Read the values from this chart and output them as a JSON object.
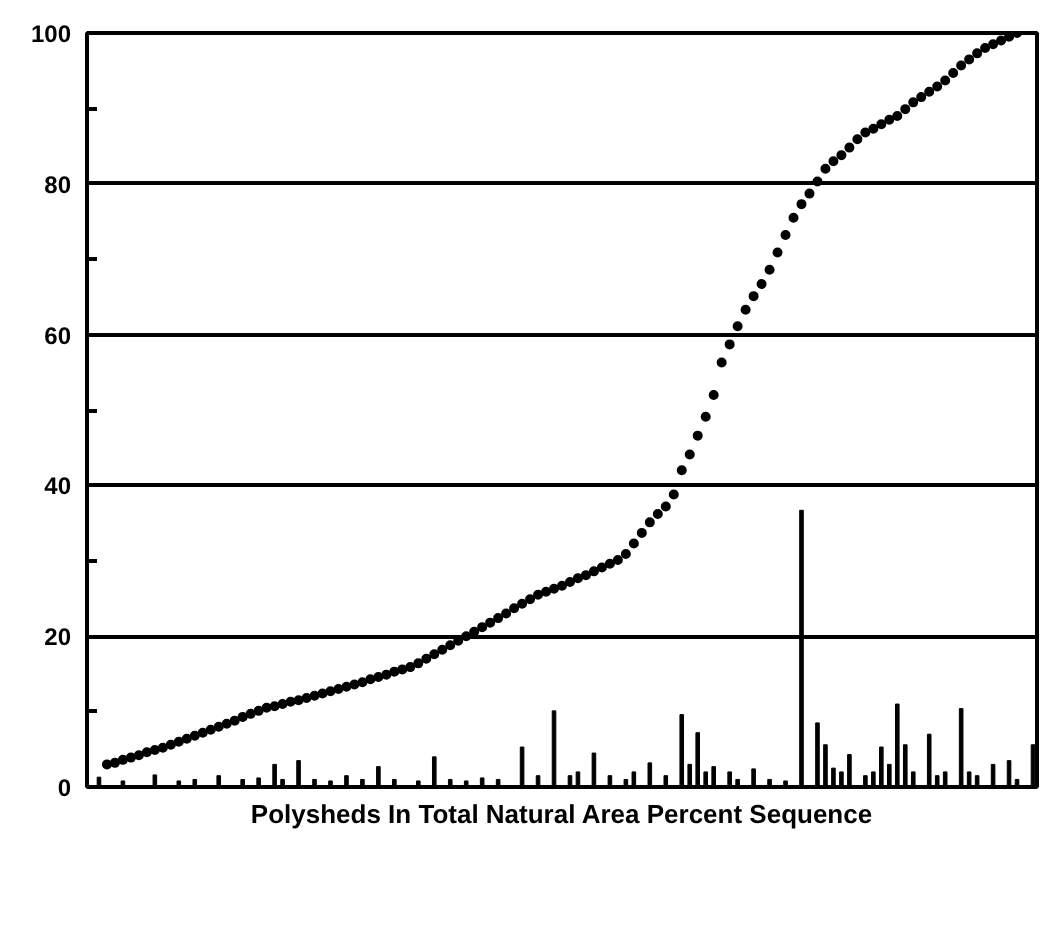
{
  "chart_data": {
    "type": "bar",
    "xlabel": "Polysheds In Total Natural Area Percent Sequence",
    "categories": [
      null,
      null,
      null,
      null,
      null,
      null,
      null,
      null,
      null,
      null,
      null,
      null,
      null,
      null,
      null,
      null,
      null,
      null,
      null,
      null,
      null,
      null,
      null,
      null,
      null,
      null,
      null,
      null,
      null,
      null,
      null,
      null,
      null,
      null,
      null,
      null,
      null,
      null,
      null,
      null,
      null,
      null,
      null,
      null,
      null,
      null,
      null,
      null,
      null,
      null,
      null,
      null,
      null,
      null,
      null,
      null,
      null,
      null,
      null,
      null,
      null,
      null,
      null,
      null,
      null,
      null,
      null,
      null,
      null,
      null,
      null,
      null,
      null,
      null,
      null,
      null,
      null,
      null,
      null,
      null,
      null,
      null,
      null,
      null,
      null,
      null,
      null,
      null,
      null,
      null,
      null,
      null,
      null,
      null,
      null,
      null,
      null,
      null,
      null,
      null,
      null,
      null,
      null,
      null,
      null,
      null,
      null,
      null,
      null,
      null,
      null,
      null,
      null,
      null,
      null,
      null,
      null,
      null,
      null
    ],
    "series": [
      {
        "color": "#000000",
        "values": [
          null,
          1.3,
          null,
          null,
          0.8,
          null,
          null,
          null,
          1.6,
          null,
          null,
          0.8,
          null,
          1.0,
          null,
          null,
          1.5,
          null,
          null,
          1.0,
          null,
          1.2,
          null,
          3.0,
          1.0,
          null,
          3.5,
          null,
          1.0,
          null,
          0.8,
          null,
          1.5,
          null,
          1.0,
          null,
          2.7,
          null,
          1.0,
          null,
          null,
          0.8,
          null,
          4.0,
          null,
          1.0,
          null,
          0.8,
          null,
          1.2,
          null,
          1.0,
          null,
          null,
          5.3,
          null,
          1.5,
          null,
          10.1,
          null,
          1.5,
          2.0,
          null,
          4.5,
          null,
          1.5,
          null,
          1.0,
          2.0,
          null,
          3.2,
          null,
          1.5,
          null,
          9.6,
          3.0,
          7.2,
          2.0,
          2.7,
          null,
          2.0,
          1.0,
          null,
          2.4,
          null,
          1.0,
          null,
          0.8,
          null,
          36.7,
          null,
          8.5,
          5.6,
          2.5,
          2.0,
          4.3,
          null,
          1.5,
          2.0,
          5.3,
          3.0,
          11.0,
          5.6,
          2.0,
          null,
          7.0,
          1.5,
          2.0,
          null,
          10.4,
          2.0,
          1.5,
          null,
          3.0,
          null,
          3.5,
          1.0,
          null,
          5.6
        ]
      },
      {
        "type": "scatter",
        "color": "#000000",
        "values": [
          null,
          null,
          3.0,
          3.2,
          3.6,
          3.9,
          4.2,
          4.6,
          4.9,
          5.2,
          5.6,
          6.0,
          6.4,
          6.8,
          7.2,
          7.6,
          8.0,
          8.4,
          8.8,
          9.3,
          9.7,
          10.1,
          10.5,
          10.7,
          11.0,
          11.3,
          11.5,
          11.8,
          12.1,
          12.4,
          12.7,
          13.0,
          13.3,
          13.6,
          13.9,
          14.3,
          14.6,
          14.9,
          15.3,
          15.6,
          15.9,
          16.4,
          17.0,
          17.6,
          18.2,
          18.8,
          19.4,
          20.0,
          20.6,
          21.2,
          21.8,
          22.4,
          23.0,
          23.7,
          24.3,
          24.9,
          25.5,
          25.9,
          26.3,
          26.7,
          27.2,
          27.7,
          28.1,
          28.6,
          29.1,
          29.6,
          30.1,
          30.9,
          32.3,
          33.7,
          35.1,
          36.2,
          37.2,
          38.8,
          42.0,
          44.1,
          46.6,
          49.1,
          52.0,
          56.3,
          58.7,
          61.1,
          63.3,
          65.1,
          66.7,
          68.6,
          70.9,
          73.2,
          75.5,
          77.3,
          78.7,
          80.3,
          82.0,
          83.0,
          83.8,
          84.8,
          85.9,
          86.8,
          87.3,
          87.9,
          88.5,
          89.0,
          89.9,
          90.8,
          91.5,
          92.2,
          92.9,
          93.7,
          94.7,
          95.7,
          96.5,
          97.3,
          98.0,
          98.5,
          99.0,
          99.5,
          100.0,
          null,
          null
        ]
      }
    ],
    "ylim": [
      0,
      100
    ],
    "yticks": [
      0,
      {
        "value": 10,
        "label": null
      },
      20,
      {
        "value": 30,
        "label": null
      },
      40,
      {
        "value": 50,
        "label": null
      },
      60,
      {
        "value": 70,
        "label": null
      },
      80,
      {
        "value": 90,
        "label": null
      },
      100
    ],
    "grid": "y",
    "tick_labels": "y",
    "marker": "circle"
  }
}
